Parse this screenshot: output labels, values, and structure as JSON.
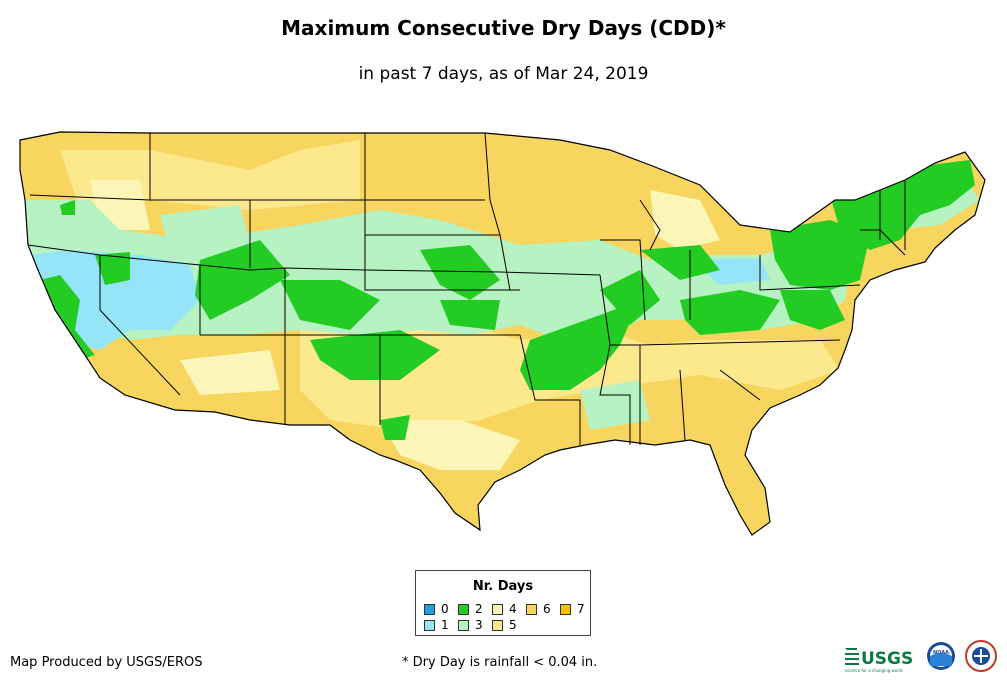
{
  "title": "Maximum Consecutive Dry Days (CDD)*",
  "subtitle": "in past 7 days, as of Mar 24, 2019",
  "legend": {
    "title": "Nr. Days",
    "items": [
      {
        "label": "0",
        "color": "#1f9fe0"
      },
      {
        "label": "1",
        "color": "#96e4f8"
      },
      {
        "label": "2",
        "color": "#22cc22"
      },
      {
        "label": "3",
        "color": "#b6f2c2"
      },
      {
        "label": "4",
        "color": "#fbf5b8"
      },
      {
        "label": "5",
        "color": "#fce98e"
      },
      {
        "label": "6",
        "color": "#f7d55e"
      },
      {
        "label": "7",
        "color": "#f5c000"
      }
    ]
  },
  "footer": {
    "credit": "Map Produced by USGS/EROS",
    "note": "* Dry Day is rainfall < 0.04 in."
  },
  "logos": {
    "usgs_text": "USGS",
    "usgs_tagline": "science for a changing world",
    "noaa_text": "NOAA"
  }
}
